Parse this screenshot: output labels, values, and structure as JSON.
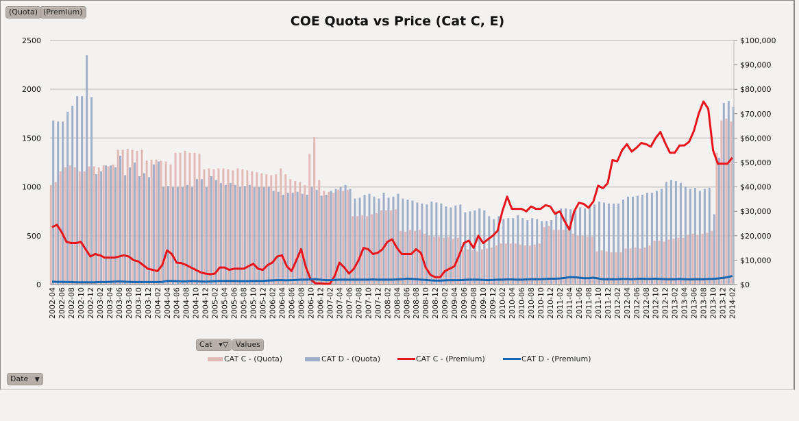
{
  "chart_data": {
    "type": "bar+line",
    "title": "COE Quota vs Price (Cat C, E)",
    "y_left": {
      "ylim": [
        0,
        2500
      ],
      "ticks": [
        "0",
        "500",
        "1000",
        "1500",
        "2000",
        "2500"
      ]
    },
    "y_right": {
      "ylim": [
        0,
        100000
      ],
      "ticks": [
        "$0",
        "$10,000",
        "$20,000",
        "$30,000",
        "$40,000",
        "$50,000",
        "$60,000",
        "$70,000",
        "$80,000",
        "$90,000",
        "$100,000"
      ]
    },
    "grid": true,
    "legend_position": "bottom",
    "x": [
      "2002-04",
      "2002-05",
      "2002-06",
      "2002-07",
      "2002-08",
      "2002-09",
      "2002-10",
      "2002-11",
      "2002-12",
      "2003-01",
      "2003-02",
      "2003-03",
      "2003-04",
      "2003-05",
      "2003-06",
      "2003-07",
      "2003-08",
      "2003-09",
      "2003-10",
      "2003-11",
      "2003-12",
      "2004-01",
      "2004-02",
      "2004-03",
      "2004-04",
      "2004-05",
      "2004-06",
      "2004-07",
      "2004-08",
      "2004-09",
      "2004-10",
      "2004-11",
      "2004-12",
      "2005-01",
      "2005-02",
      "2005-03",
      "2005-04",
      "2005-05",
      "2005-06",
      "2005-07",
      "2005-08",
      "2005-09",
      "2005-10",
      "2005-11",
      "2005-12",
      "2006-01",
      "2006-02",
      "2006-03",
      "2006-04",
      "2006-05",
      "2006-06",
      "2006-07",
      "2006-08",
      "2006-09",
      "2006-10",
      "2006-11",
      "2006-12",
      "2007-01",
      "2007-02",
      "2007-03",
      "2007-04",
      "2007-05",
      "2007-06",
      "2007-07",
      "2007-08",
      "2007-09",
      "2007-10",
      "2007-11",
      "2007-12",
      "2008-01",
      "2008-02",
      "2008-03",
      "2008-04",
      "2008-05",
      "2008-06",
      "2008-07",
      "2008-08",
      "2008-09",
      "2008-10",
      "2008-11",
      "2008-12",
      "2009-01",
      "2009-02",
      "2009-03",
      "2009-04",
      "2009-05",
      "2009-06",
      "2009-07",
      "2009-08",
      "2009-09",
      "2009-10",
      "2009-11",
      "2009-12",
      "2010-01",
      "2010-02",
      "2010-03",
      "2010-04",
      "2010-05",
      "2010-06",
      "2010-07",
      "2010-08",
      "2010-09",
      "2010-10",
      "2010-11",
      "2010-12",
      "2011-01",
      "2011-02",
      "2011-03",
      "2011-04",
      "2011-05",
      "2011-06",
      "2011-07",
      "2011-08",
      "2011-09",
      "2011-10",
      "2011-11",
      "2011-12",
      "2012-01",
      "2012-02",
      "2012-03",
      "2012-04",
      "2012-05",
      "2012-06",
      "2012-07",
      "2012-08",
      "2012-09",
      "2012-10",
      "2012-11",
      "2012-12",
      "2013-01",
      "2013-02",
      "2013-03",
      "2013-04",
      "2013-05",
      "2013-06",
      "2013-07",
      "2013-08",
      "2013-09",
      "2013-10",
      "2013-11",
      "2013-12",
      "2014-01",
      "2014-02"
    ],
    "x_tick_labels": [
      "2002-04",
      "2002-06",
      "2002-08",
      "2002-10",
      "2002-12",
      "2003-02",
      "2003-04",
      "2003-06",
      "2003-08",
      "2003-10",
      "2003-12",
      "2004-02",
      "2004-04",
      "2004-06",
      "2004-08",
      "2004-10",
      "2004-12",
      "2005-02",
      "2005-04",
      "2005-06",
      "2005-08",
      "2005-10",
      "2005-12",
      "2006-02",
      "2006-04",
      "2006-06",
      "2006-08",
      "2006-10",
      "2006-12",
      "2007-02",
      "2007-04",
      "2007-06",
      "2007-08",
      "2007-10",
      "2007-12",
      "2008-02",
      "2008-04",
      "2008-06",
      "2008-08",
      "2008-10",
      "2008-12",
      "2009-02",
      "2009-04",
      "2009-06",
      "2009-08",
      "2009-10",
      "2009-12",
      "2010-02",
      "2010-04",
      "2010-06",
      "2010-08",
      "2010-10",
      "2010-12",
      "2011-02",
      "2011-04",
      "2011-06",
      "2011-08",
      "2011-10",
      "2011-12",
      "2012-02",
      "2012-04",
      "2012-06",
      "2012-08",
      "2012-10",
      "2012-12",
      "2013-02",
      "2013-04",
      "2013-06",
      "2013-08",
      "2013-10",
      "2013-12",
      "2014-02"
    ],
    "series": [
      {
        "name": "CAT C - (Quota)",
        "type": "bar",
        "axis": "left",
        "color": "#e3b9b7",
        "values": [
          1020,
          1050,
          1160,
          1200,
          1220,
          1200,
          1160,
          1160,
          1210,
          1210,
          1200,
          1220,
          1210,
          1230,
          1380,
          1380,
          1390,
          1380,
          1370,
          1380,
          1270,
          1280,
          1280,
          1270,
          1260,
          1230,
          1350,
          1350,
          1370,
          1350,
          1350,
          1340,
          1180,
          1190,
          1180,
          1190,
          1190,
          1180,
          1170,
          1190,
          1180,
          1170,
          1160,
          1150,
          1140,
          1130,
          1120,
          1130,
          1190,
          1130,
          1080,
          1060,
          1050,
          1020,
          1340,
          1510,
          1070,
          960,
          950,
          940,
          970,
          960,
          970,
          700,
          700,
          710,
          700,
          720,
          730,
          760,
          760,
          760,
          770,
          550,
          540,
          560,
          550,
          560,
          520,
          500,
          490,
          490,
          480,
          490,
          470,
          480,
          350,
          360,
          350,
          340,
          360,
          370,
          380,
          400,
          420,
          420,
          420,
          420,
          410,
          400,
          400,
          410,
          420,
          590,
          600,
          560,
          560,
          560,
          560,
          520,
          500,
          500,
          490,
          490,
          340,
          350,
          340,
          330,
          330,
          330,
          370,
          370,
          380,
          370,
          380,
          400,
          450,
          450,
          440,
          460,
          470,
          480,
          480,
          510,
          520,
          510,
          520,
          530,
          550,
          1350,
          1680,
          1700,
          1670
        ]
      },
      {
        "name": "CAT D - (Quota)",
        "type": "bar",
        "axis": "left",
        "color": "#9fafca",
        "values": [
          1680,
          1670,
          1670,
          1770,
          1830,
          1930,
          1930,
          2350,
          1920,
          1130,
          1160,
          1220,
          1220,
          1200,
          1320,
          1120,
          1200,
          1250,
          1110,
          1140,
          1100,
          1230,
          1260,
          1000,
          1010,
          1000,
          1000,
          1000,
          1020,
          1000,
          1080,
          1080,
          1000,
          1110,
          1070,
          1040,
          1020,
          1040,
          1020,
          1000,
          1010,
          1020,
          1000,
          1000,
          1000,
          1000,
          960,
          950,
          920,
          940,
          940,
          950,
          930,
          920,
          1000,
          970,
          910,
          920,
          960,
          980,
          1000,
          1020,
          980,
          880,
          890,
          920,
          930,
          900,
          880,
          940,
          890,
          900,
          930,
          880,
          870,
          860,
          840,
          830,
          820,
          850,
          840,
          830,
          800,
          790,
          810,
          820,
          740,
          750,
          760,
          780,
          760,
          700,
          670,
          700,
          670,
          680,
          680,
          710,
          680,
          660,
          680,
          670,
          650,
          650,
          660,
          750,
          780,
          780,
          770,
          760,
          790,
          780,
          800,
          820,
          850,
          840,
          830,
          830,
          830,
          870,
          900,
          900,
          910,
          920,
          940,
          940,
          960,
          980,
          1050,
          1070,
          1060,
          1040,
          1000,
          980,
          990,
          960,
          980,
          990,
          720,
          1300,
          1860,
          1880,
          1820
        ]
      },
      {
        "name": "CAT C - (Premium)",
        "type": "line",
        "axis": "right",
        "color": "#e8141b",
        "values": [
          23500,
          24500,
          21500,
          17500,
          17000,
          17000,
          17500,
          14500,
          11500,
          12500,
          12000,
          11000,
          11000,
          11000,
          11500,
          12000,
          11500,
          10000,
          9500,
          8000,
          6500,
          6000,
          5500,
          8000,
          14000,
          12500,
          9000,
          8800,
          8000,
          7000,
          6000,
          5000,
          4500,
          4200,
          4500,
          7000,
          7000,
          6000,
          6500,
          6500,
          6500,
          7500,
          8500,
          6500,
          6000,
          8000,
          9000,
          11500,
          12000,
          7500,
          5500,
          10000,
          14500,
          7000,
          2000,
          500,
          500,
          300,
          300,
          3500,
          9000,
          7000,
          4500,
          6500,
          10000,
          15000,
          14500,
          12500,
          13000,
          14500,
          17500,
          18500,
          15000,
          12500,
          12500,
          12500,
          14500,
          13000,
          7000,
          4000,
          3000,
          3000,
          5500,
          6500,
          7500,
          12000,
          17000,
          18000,
          15000,
          20000,
          17000,
          18500,
          20000,
          22000,
          30000,
          36000,
          31000,
          31000,
          31000,
          30000,
          32000,
          31000,
          31000,
          32500,
          32000,
          29000,
          30000,
          26000,
          22500,
          30000,
          33500,
          33000,
          31500,
          34000,
          40500,
          39500,
          41500,
          51000,
          50500,
          55000,
          57500,
          54500,
          56000,
          58000,
          57500,
          56500,
          60000,
          62500,
          58000,
          54000,
          54000,
          57000,
          57000,
          58500,
          63000,
          70000,
          75000,
          72000,
          55000,
          49500,
          49500,
          49500,
          52000
        ]
      },
      {
        "name": "CAT D - (Premium)",
        "type": "line",
        "axis": "right",
        "color": "#1565b0",
        "values": [
          1200,
          1100,
          1100,
          1000,
          1000,
          900,
          900,
          900,
          900,
          900,
          1000,
          1000,
          1100,
          1200,
          1300,
          1200,
          1100,
          1000,
          1000,
          1000,
          1000,
          1000,
          1000,
          1100,
          1500,
          1500,
          1400,
          1300,
          1300,
          1500,
          1400,
          1300,
          1200,
          1300,
          1400,
          1500,
          1500,
          1500,
          1500,
          1400,
          1400,
          1400,
          1500,
          1500,
          1500,
          1600,
          1700,
          1800,
          1800,
          1700,
          1800,
          1900,
          2000,
          2000,
          2100,
          2200,
          2000,
          1800,
          1800,
          1900,
          2000,
          2000,
          2000,
          2000,
          2000,
          2000,
          2000,
          2100,
          2000,
          2000,
          2000,
          2000,
          2100,
          2200,
          2400,
          2300,
          2200,
          2000,
          1900,
          1700,
          1600,
          1600,
          1700,
          1800,
          1800,
          1800,
          1900,
          2000,
          2000,
          2000,
          1900,
          1800,
          1900,
          2000,
          2000,
          2100,
          2100,
          2000,
          2000,
          2100,
          2200,
          2200,
          2200,
          2300,
          2400,
          2400,
          2500,
          2700,
          3000,
          3000,
          2800,
          2600,
          2600,
          2800,
          2500,
          2200,
          2200,
          2200,
          2200,
          2300,
          2300,
          2200,
          2300,
          2400,
          2300,
          2300,
          2400,
          2300,
          2200,
          2200,
          2200,
          2300,
          2200,
          2100,
          2200,
          2200,
          2200,
          2300,
          2300,
          2500,
          2700,
          3000,
          3500
        ]
      }
    ]
  },
  "pivot_buttons": {
    "quota": "(Quota)",
    "premium": "(Premium)",
    "cat": "Cat",
    "values": "Values",
    "date": "Date"
  }
}
